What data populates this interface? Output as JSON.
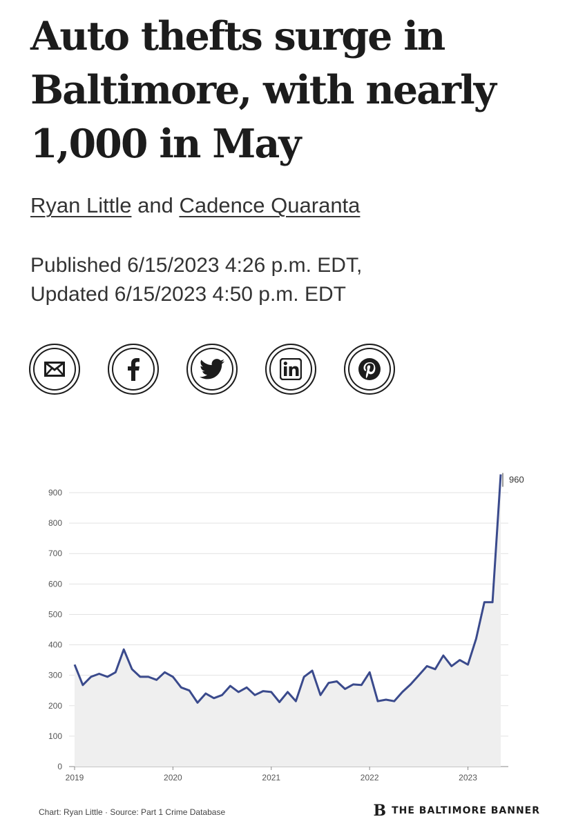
{
  "article": {
    "headline": "Auto thefts surge in Baltimore, with nearly 1,000 in May",
    "authors": [
      "Ryan Little",
      "Cadence Quaranta"
    ],
    "author_joiner": "and",
    "published": "Published 6/15/2023 4:26 p.m. EDT,",
    "updated": "Updated 6/15/2023 4:50 p.m. EDT"
  },
  "share_buttons": [
    {
      "icon": "email-icon"
    },
    {
      "icon": "facebook-icon"
    },
    {
      "icon": "twitter-icon"
    },
    {
      "icon": "linkedin-icon"
    },
    {
      "icon": "pinterest-icon"
    }
  ],
  "chart_data": {
    "type": "area",
    "title": "",
    "xlabel": "",
    "ylabel": "",
    "ylim": [
      0,
      960
    ],
    "yticks": [
      0,
      100,
      200,
      300,
      400,
      500,
      600,
      700,
      800,
      900
    ],
    "xticks": [
      "2019",
      "2020",
      "2021",
      "2022",
      "2023"
    ],
    "x_start": "2019-01",
    "x_end": "2023-05",
    "annotation": "960",
    "grid": true,
    "line_color": "#3a4a8c",
    "fill_color": "#efefef",
    "series": [
      {
        "values": [
          335,
          268,
          295,
          305,
          295,
          310,
          385,
          320,
          295,
          295,
          285,
          310,
          295,
          260,
          250,
          210,
          240,
          225,
          235,
          265,
          245,
          260,
          235,
          248,
          245,
          212,
          245,
          215,
          295,
          315,
          235,
          275,
          280,
          255,
          270,
          268,
          310,
          215,
          220,
          215,
          245,
          270,
          300,
          330,
          320,
          365,
          330,
          350,
          335,
          420,
          540,
          540,
          960
        ]
      }
    ]
  },
  "footer": {
    "credit": "Chart: Ryan Little · Source: Part 1 Crime Database",
    "logo_mark": "B",
    "brand": "THE BALTIMORE BANNER"
  }
}
